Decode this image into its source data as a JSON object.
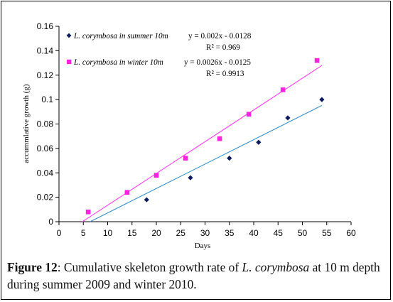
{
  "chart_data": {
    "type": "scatter",
    "xlabel": "Days",
    "ylabel": "accummlative growth (g)",
    "xlim": [
      0,
      60
    ],
    "ylim": [
      0,
      0.16
    ],
    "xticks": [
      0,
      5,
      10,
      15,
      20,
      25,
      30,
      35,
      40,
      45,
      50,
      55,
      60
    ],
    "yticks": [
      "0",
      "0.02",
      "0.04",
      "0.06",
      "0.08",
      "0.1",
      "0.12",
      "0.14",
      "0.16"
    ],
    "legend_position": "top-left",
    "grid": false,
    "series": [
      {
        "name": "L. corymbosa in summer 10m",
        "marker": "diamond",
        "color": "#0d1a5c",
        "trend_color": "#3a8fc4",
        "trend_text": "y = 0.002x - 0.0128",
        "r2_text": "R² = 0.969",
        "trend_slope": 0.002,
        "trend_intercept": -0.0128,
        "x": [
          18,
          27,
          35,
          41,
          47,
          54
        ],
        "y": [
          0.018,
          0.036,
          0.052,
          0.065,
          0.085,
          0.1
        ]
      },
      {
        "name": "L. corymbosa in winter 10m",
        "marker": "square",
        "color": "#ff22e0",
        "trend_color": "#ff3ef0",
        "trend_text": "y = 0.0026x - 0.0125",
        "r2_text": "R² = 0.9913",
        "trend_slope": 0.0026,
        "trend_intercept": -0.0125,
        "x": [
          6,
          14,
          20,
          26,
          33,
          39,
          46,
          53
        ],
        "y": [
          0.008,
          0.024,
          0.038,
          0.052,
          0.068,
          0.088,
          0.108,
          0.132
        ]
      }
    ]
  },
  "caption": {
    "label": "Figure 12",
    "text_1": ": Cumulative skeleton growth rate of ",
    "species": "L. corymbosa",
    "text_2": " at 10 m depth during summer 2009 and winter 2010."
  }
}
